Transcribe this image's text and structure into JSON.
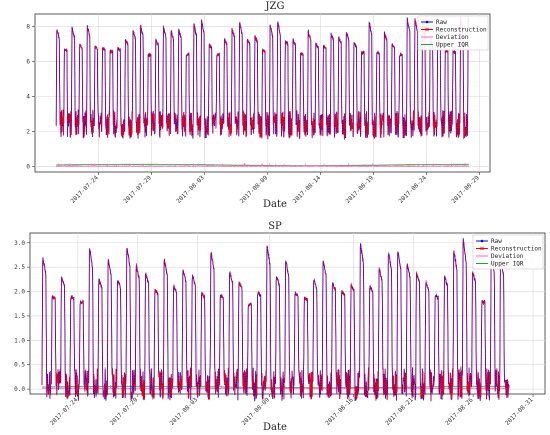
{
  "chart_data": [
    {
      "type": "line",
      "title": "JZG",
      "xlabel": "Date",
      "ylabel": "",
      "ylim": [
        -0.3,
        8.7
      ],
      "y_ticks": [
        0,
        2,
        4,
        6,
        8
      ],
      "x_range": [
        "2017-07-18",
        "2017-08-30"
      ],
      "x_tick_labels": [
        "2017-07-24",
        "2017-07-29",
        "2017-08-03",
        "2017-08-09",
        "2017-08-14",
        "2017-08-19",
        "2017-08-24",
        "2017-08-29"
      ],
      "grid": true,
      "legend": "top-right",
      "series": [
        {
          "name": "Raw",
          "color": "#0000ff",
          "marker": "dot"
        },
        {
          "name": "Reconstruction",
          "color": "#ff0000",
          "marker": "x"
        },
        {
          "name": "Deviation",
          "color": "#ff66cc"
        },
        {
          "name": "Upper IQR",
          "color": "#2ca02c"
        }
      ],
      "signal": {
        "start": "2017-07-20",
        "end": "2017-08-28",
        "period_days": 0.72,
        "low": 2.4,
        "high": 6.8,
        "high_peak_range": [
          6.2,
          8.5
        ]
      },
      "upper_iqr_level": 0.12,
      "deviation_typical": 0.05
    },
    {
      "type": "line",
      "title": "SP",
      "xlabel": "Date",
      "ylabel": "",
      "ylim": [
        -0.1,
        3.2
      ],
      "y_ticks": [
        0.0,
        0.5,
        1.0,
        1.5,
        2.0,
        2.5,
        3.0
      ],
      "x_range": [
        "2017-07-20",
        "2017-09-01"
      ],
      "x_tick_labels": [
        "2017-07-24",
        "2017-07-29",
        "2017-08-03",
        "2017-08-09",
        "2017-08-16",
        "2017-08-21",
        "2017-08-26",
        "2017-08-31"
      ],
      "grid": true,
      "legend": "top-right",
      "series": [
        {
          "name": "Raw",
          "color": "#0000ff",
          "marker": "dot"
        },
        {
          "name": "Reconstruction",
          "color": "#ff0000",
          "marker": "x"
        },
        {
          "name": "Deviation",
          "color": "#ff66cc"
        },
        {
          "name": "Upper IQR",
          "color": "#2ca02c"
        }
      ],
      "signal": {
        "start": "2017-07-21",
        "end": "2017-08-29",
        "period_days": 0.78,
        "low": 0.1,
        "high": 1.9,
        "high_peak_range": [
          1.6,
          3.1
        ]
      },
      "upper_iqr_level": 0.05,
      "deviation_typical": 0.02
    }
  ]
}
